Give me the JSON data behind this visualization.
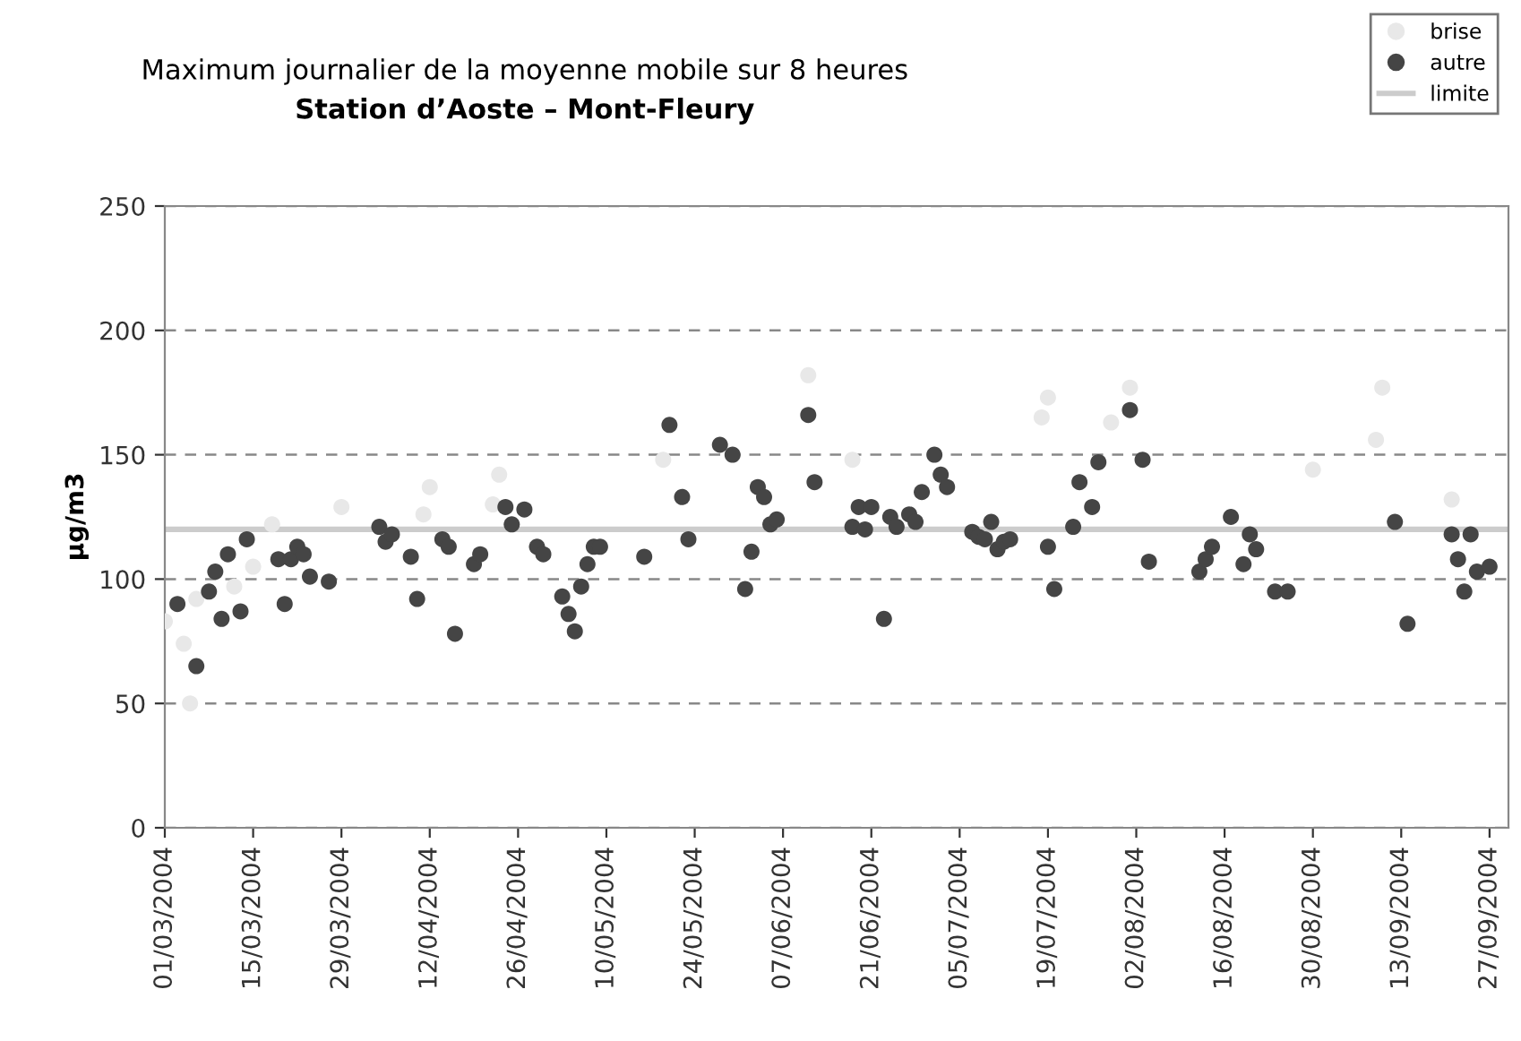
{
  "chart_data": {
    "type": "scatter",
    "title": "Maximum journalier de la moyenne mobile sur 8 heures",
    "subtitle": "Station d’Aoste – Mont-Fleury",
    "ylabel": "µg/m3",
    "marker": "circle",
    "grid": "y",
    "legend": "top right",
    "xlim": [
      "2004-03-01",
      "2004-09-30"
    ],
    "ylim": [
      0,
      250
    ],
    "yticks": [
      0,
      50,
      100,
      150,
      200,
      250
    ],
    "xticks": [
      {
        "value": "2004-03-01",
        "label": "01/03/2004"
      },
      {
        "value": "2004-03-15",
        "label": "15/03/2004"
      },
      {
        "value": "2004-03-29",
        "label": "29/03/2004"
      },
      {
        "value": "2004-04-12",
        "label": "12/04/2004"
      },
      {
        "value": "2004-04-26",
        "label": "26/04/2004"
      },
      {
        "value": "2004-05-10",
        "label": "10/05/2004"
      },
      {
        "value": "2004-05-24",
        "label": "24/05/2004"
      },
      {
        "value": "2004-06-07",
        "label": "07/06/2004"
      },
      {
        "value": "2004-06-21",
        "label": "21/06/2004"
      },
      {
        "value": "2004-07-05",
        "label": "05/07/2004"
      },
      {
        "value": "2004-07-19",
        "label": "19/07/2004"
      },
      {
        "value": "2004-08-02",
        "label": "02/08/2004"
      },
      {
        "value": "2004-08-16",
        "label": "16/08/2004"
      },
      {
        "value": "2004-08-30",
        "label": "30/08/2004"
      },
      {
        "value": "2004-09-13",
        "label": "13/09/2004"
      },
      {
        "value": "2004-09-27",
        "label": "27/09/2004"
      }
    ],
    "series": [
      {
        "name": "brise",
        "color": "#e8e8e8",
        "x": [
          "2004-03-01",
          "2004-03-04",
          "2004-03-05",
          "2004-03-06",
          "2004-03-12",
          "2004-03-15",
          "2004-03-18",
          "2004-03-29",
          "2004-04-11",
          "2004-04-12",
          "2004-04-22",
          "2004-04-23",
          "2004-05-19",
          "2004-06-11",
          "2004-06-18",
          "2004-07-18",
          "2004-07-19",
          "2004-07-29",
          "2004-08-01",
          "2004-08-30",
          "2004-09-09",
          "2004-09-10",
          "2004-09-21"
        ],
        "values": [
          83,
          74,
          50,
          92,
          97,
          105,
          122,
          129,
          126,
          137,
          130,
          142,
          148,
          182,
          148,
          165,
          173,
          163,
          177,
          144,
          156,
          177,
          132
        ]
      },
      {
        "name": "autre",
        "color": "#454545",
        "x": [
          "2004-03-03",
          "2004-03-06",
          "2004-03-08",
          "2004-03-09",
          "2004-03-10",
          "2004-03-11",
          "2004-03-13",
          "2004-03-14",
          "2004-03-19",
          "2004-03-20",
          "2004-03-21",
          "2004-03-22",
          "2004-03-23",
          "2004-03-24",
          "2004-03-27",
          "2004-04-04",
          "2004-04-05",
          "2004-04-06",
          "2004-04-09",
          "2004-04-10",
          "2004-04-14",
          "2004-04-15",
          "2004-04-16",
          "2004-04-19",
          "2004-04-20",
          "2004-04-24",
          "2004-04-25",
          "2004-04-27",
          "2004-04-29",
          "2004-04-30",
          "2004-05-03",
          "2004-05-04",
          "2004-05-05",
          "2004-05-06",
          "2004-05-07",
          "2004-05-08",
          "2004-05-09",
          "2004-05-16",
          "2004-05-20",
          "2004-05-22",
          "2004-05-23",
          "2004-05-28",
          "2004-05-30",
          "2004-06-01",
          "2004-06-02",
          "2004-06-03",
          "2004-06-04",
          "2004-06-05",
          "2004-06-06",
          "2004-06-11",
          "2004-06-12",
          "2004-06-18",
          "2004-06-19",
          "2004-06-20",
          "2004-06-21",
          "2004-06-23",
          "2004-06-24",
          "2004-06-25",
          "2004-06-27",
          "2004-06-28",
          "2004-06-29",
          "2004-07-01",
          "2004-07-02",
          "2004-07-03",
          "2004-07-07",
          "2004-07-08",
          "2004-07-09",
          "2004-07-10",
          "2004-07-11",
          "2004-07-12",
          "2004-07-13",
          "2004-07-19",
          "2004-07-20",
          "2004-07-23",
          "2004-07-24",
          "2004-07-26",
          "2004-07-27",
          "2004-08-01",
          "2004-08-03",
          "2004-08-04",
          "2004-08-12",
          "2004-08-13",
          "2004-08-14",
          "2004-08-17",
          "2004-08-19",
          "2004-08-20",
          "2004-08-21",
          "2004-08-24",
          "2004-08-26",
          "2004-09-12",
          "2004-09-14",
          "2004-09-21",
          "2004-09-22",
          "2004-09-23",
          "2004-09-24",
          "2004-09-25",
          "2004-09-27"
        ],
        "values": [
          90,
          65,
          95,
          103,
          84,
          110,
          87,
          116,
          108,
          90,
          108,
          113,
          110,
          101,
          99,
          121,
          115,
          118,
          109,
          92,
          116,
          113,
          78,
          106,
          110,
          129,
          122,
          128,
          113,
          110,
          93,
          86,
          79,
          97,
          106,
          113,
          113,
          109,
          162,
          133,
          116,
          154,
          150,
          96,
          111,
          137,
          133,
          122,
          124,
          166,
          139,
          121,
          129,
          120,
          129,
          84,
          125,
          121,
          126,
          123,
          135,
          150,
          142,
          137,
          119,
          117,
          116,
          123,
          112,
          115,
          116,
          113,
          96,
          121,
          139,
          129,
          147,
          168,
          148,
          107,
          103,
          108,
          113,
          125,
          106,
          118,
          112,
          95,
          95,
          123,
          82,
          118,
          108,
          95,
          118,
          103,
          105
        ]
      }
    ],
    "ref_lines": [
      {
        "axis": "y",
        "value": 120,
        "label": "limite",
        "color": "#cccccc",
        "line_style": "solid"
      }
    ]
  }
}
